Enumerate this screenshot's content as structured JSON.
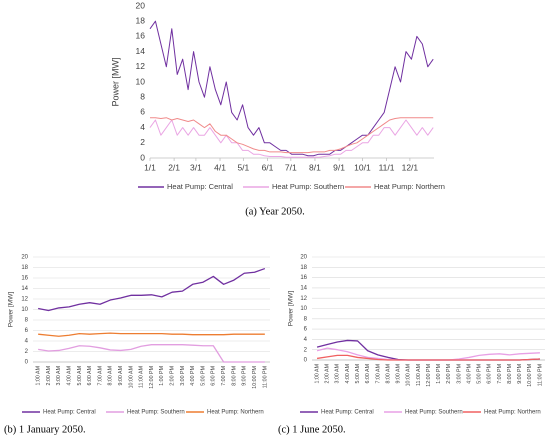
{
  "chart_data": [
    {
      "type": "line",
      "caption": "(a) Year 2050.",
      "y_label": "Power [MW]",
      "grid": false,
      "xlim": [
        0,
        365
      ],
      "xticks": [
        {
          "value": 0,
          "label": "1/1"
        },
        {
          "value": 31,
          "label": "2/1"
        },
        {
          "value": 59,
          "label": "3/1"
        },
        {
          "value": 90,
          "label": "4/1"
        },
        {
          "value": 120,
          "label": "5/1"
        },
        {
          "value": 151,
          "label": "6/1"
        },
        {
          "value": 181,
          "label": "7/1"
        },
        {
          "value": 212,
          "label": "8/1"
        },
        {
          "value": 243,
          "label": "9/1"
        },
        {
          "value": 273,
          "label": "10/1"
        },
        {
          "value": 304,
          "label": "11/1"
        },
        {
          "value": 334,
          "label": "12/1"
        }
      ],
      "ylim": [
        0,
        20
      ],
      "yticks": [
        0,
        2,
        4,
        6,
        8,
        10,
        12,
        14,
        16,
        18,
        20
      ],
      "x": [
        0,
        7,
        14,
        21,
        28,
        35,
        42,
        49,
        56,
        63,
        70,
        77,
        84,
        91,
        98,
        105,
        112,
        119,
        126,
        133,
        140,
        147,
        154,
        161,
        168,
        175,
        182,
        189,
        196,
        203,
        210,
        217,
        224,
        231,
        238,
        245,
        252,
        259,
        266,
        273,
        280,
        287,
        294,
        301,
        308,
        315,
        322,
        329,
        336,
        343,
        350,
        357,
        364
      ],
      "series": [
        {
          "name": "Heat Pump: Central",
          "color": "#7030a0",
          "values": [
            17,
            18,
            15,
            12,
            17,
            11,
            13,
            9,
            14,
            10,
            8,
            12,
            9,
            7,
            10,
            6,
            5,
            7,
            4,
            3,
            4,
            2,
            2,
            1.5,
            1,
            1,
            0.5,
            0.5,
            0.5,
            0.3,
            0.3,
            0.5,
            0.5,
            0.5,
            1,
            1,
            1.5,
            2,
            2.5,
            3,
            3,
            4,
            5,
            6,
            9,
            12,
            10,
            14,
            13,
            16,
            15,
            12,
            13
          ]
        },
        {
          "name": "Heat Pump: Southern",
          "color": "#eaa6e4",
          "values": [
            4,
            5,
            3,
            4,
            5,
            3,
            4,
            3,
            4,
            3,
            3,
            4,
            3,
            2,
            3,
            2,
            2,
            1,
            1,
            0.5,
            0.5,
            0.3,
            0.2,
            0.2,
            0.2,
            0.1,
            0.1,
            0.1,
            0.1,
            0.1,
            0.1,
            0.1,
            0.2,
            0.3,
            0.5,
            0.5,
            1,
            1,
            1.5,
            2,
            2,
            3,
            3,
            4,
            4,
            3,
            4,
            5,
            4,
            3,
            4,
            3,
            4
          ]
        },
        {
          "name": "Heat Pump: Northern",
          "color": "#f08a8a",
          "values": [
            5.3,
            5.3,
            5.2,
            5.3,
            5,
            5.2,
            5,
            4.8,
            5,
            4.5,
            4,
            4.5,
            3.5,
            3,
            3,
            2.5,
            2,
            1.8,
            1.5,
            1.2,
            1,
            1,
            0.8,
            0.8,
            0.8,
            0.7,
            0.7,
            0.7,
            0.7,
            0.7,
            0.8,
            0.8,
            0.8,
            1,
            1,
            1.2,
            1.5,
            1.8,
            2,
            2.5,
            3,
            3.5,
            4,
            4.5,
            5,
            5.2,
            5.3,
            5.3,
            5.3,
            5.3,
            5.3,
            5.3,
            5.3
          ]
        }
      ]
    },
    {
      "type": "line",
      "caption": "(b) 1 January 2050.",
      "y_label": "Power [MW]",
      "grid": true,
      "ylim": [
        0,
        20
      ],
      "yticks": [
        0,
        2,
        4,
        6,
        8,
        10,
        12,
        14,
        16,
        18,
        20
      ],
      "categories": [
        "1:00 AM",
        "2:00 AM",
        "3:00 AM",
        "4:00 AM",
        "5:00 AM",
        "6:00 AM",
        "7:00 AM",
        "8:00 AM",
        "9:00 AM",
        "10:00 AM",
        "11:00 AM",
        "12:00 PM",
        "1:00 PM",
        "2:00 PM",
        "3:00 PM",
        "4:00 PM",
        "5:00 PM",
        "6:00 PM",
        "7:00 PM",
        "8:00 PM",
        "9:00 PM",
        "10:00 PM",
        "11:00 PM"
      ],
      "series": [
        {
          "name": "Heat Pump: Central",
          "color": "#7030a0",
          "values": [
            10.2,
            9.8,
            10.3,
            10.5,
            11,
            11.3,
            11,
            11.8,
            12.2,
            12.7,
            12.7,
            12.8,
            12.4,
            13.3,
            13.5,
            14.8,
            15.2,
            16.3,
            14.8,
            15.6,
            16.9,
            17.1,
            17.8
          ]
        },
        {
          "name": "Heat Pump: Southern",
          "color": "#e29ee0",
          "values": [
            2.4,
            2.1,
            2.2,
            2.6,
            3.1,
            3.0,
            2.7,
            2.3,
            2.2,
            2.4,
            3.0,
            3.3,
            3.3,
            3.3,
            3.3,
            3.2,
            3.1,
            3.1,
            0,
            0,
            0,
            0,
            0
          ]
        },
        {
          "name": "Heat Pump: Northern",
          "color": "#ed7d31",
          "values": [
            5.3,
            5.1,
            4.9,
            5.1,
            5.4,
            5.3,
            5.4,
            5.5,
            5.4,
            5.4,
            5.4,
            5.4,
            5.4,
            5.3,
            5.3,
            5.2,
            5.2,
            5.2,
            5.2,
            5.3,
            5.3,
            5.3,
            5.3
          ]
        }
      ]
    },
    {
      "type": "line",
      "caption": "(c) 1 June 2050.",
      "y_label": "Power [MW]",
      "grid": true,
      "ylim": [
        0,
        20
      ],
      "yticks": [
        0,
        2,
        4,
        6,
        8,
        10,
        12,
        14,
        16,
        18,
        20
      ],
      "categories": [
        "1:00 AM",
        "2:00 AM",
        "3:00 AM",
        "4:00 AM",
        "5:00 AM",
        "6:00 AM",
        "7:00 AM",
        "8:00 AM",
        "9:00 AM",
        "10:00 AM",
        "11:00 AM",
        "12:00 PM",
        "1:00 PM",
        "2:00 PM",
        "3:00 PM",
        "4:00 PM",
        "5:00 PM",
        "6:00 PM",
        "7:00 PM",
        "8:00 PM",
        "9:00 PM",
        "10:00 PM",
        "11:00 PM"
      ],
      "series": [
        {
          "name": "Heat Pump: Central",
          "color": "#7030a0",
          "values": [
            2.5,
            3.0,
            3.5,
            3.8,
            3.7,
            1.8,
            1,
            0.5,
            0.1,
            0,
            0,
            0,
            0,
            0,
            0,
            0,
            0,
            0,
            0,
            0,
            0,
            0.1,
            0.2
          ]
        },
        {
          "name": "Heat Pump: Southern",
          "color": "#e8a0e6",
          "values": [
            1.8,
            2.3,
            2.0,
            1.6,
            1.0,
            0.5,
            0.3,
            0.1,
            0,
            0,
            0,
            0,
            0,
            0,
            0.2,
            0.5,
            0.9,
            1.1,
            1.2,
            1.0,
            1.2,
            1.3,
            1.4
          ]
        },
        {
          "name": "Heat Pump: Northern",
          "color": "#f06060",
          "values": [
            0.3,
            0.6,
            0.9,
            0.9,
            0.5,
            0.3,
            0.1,
            0,
            0,
            0,
            0,
            0,
            0,
            0,
            0,
            0,
            0,
            0,
            0,
            0,
            0,
            0.1,
            0.2
          ]
        }
      ]
    }
  ]
}
